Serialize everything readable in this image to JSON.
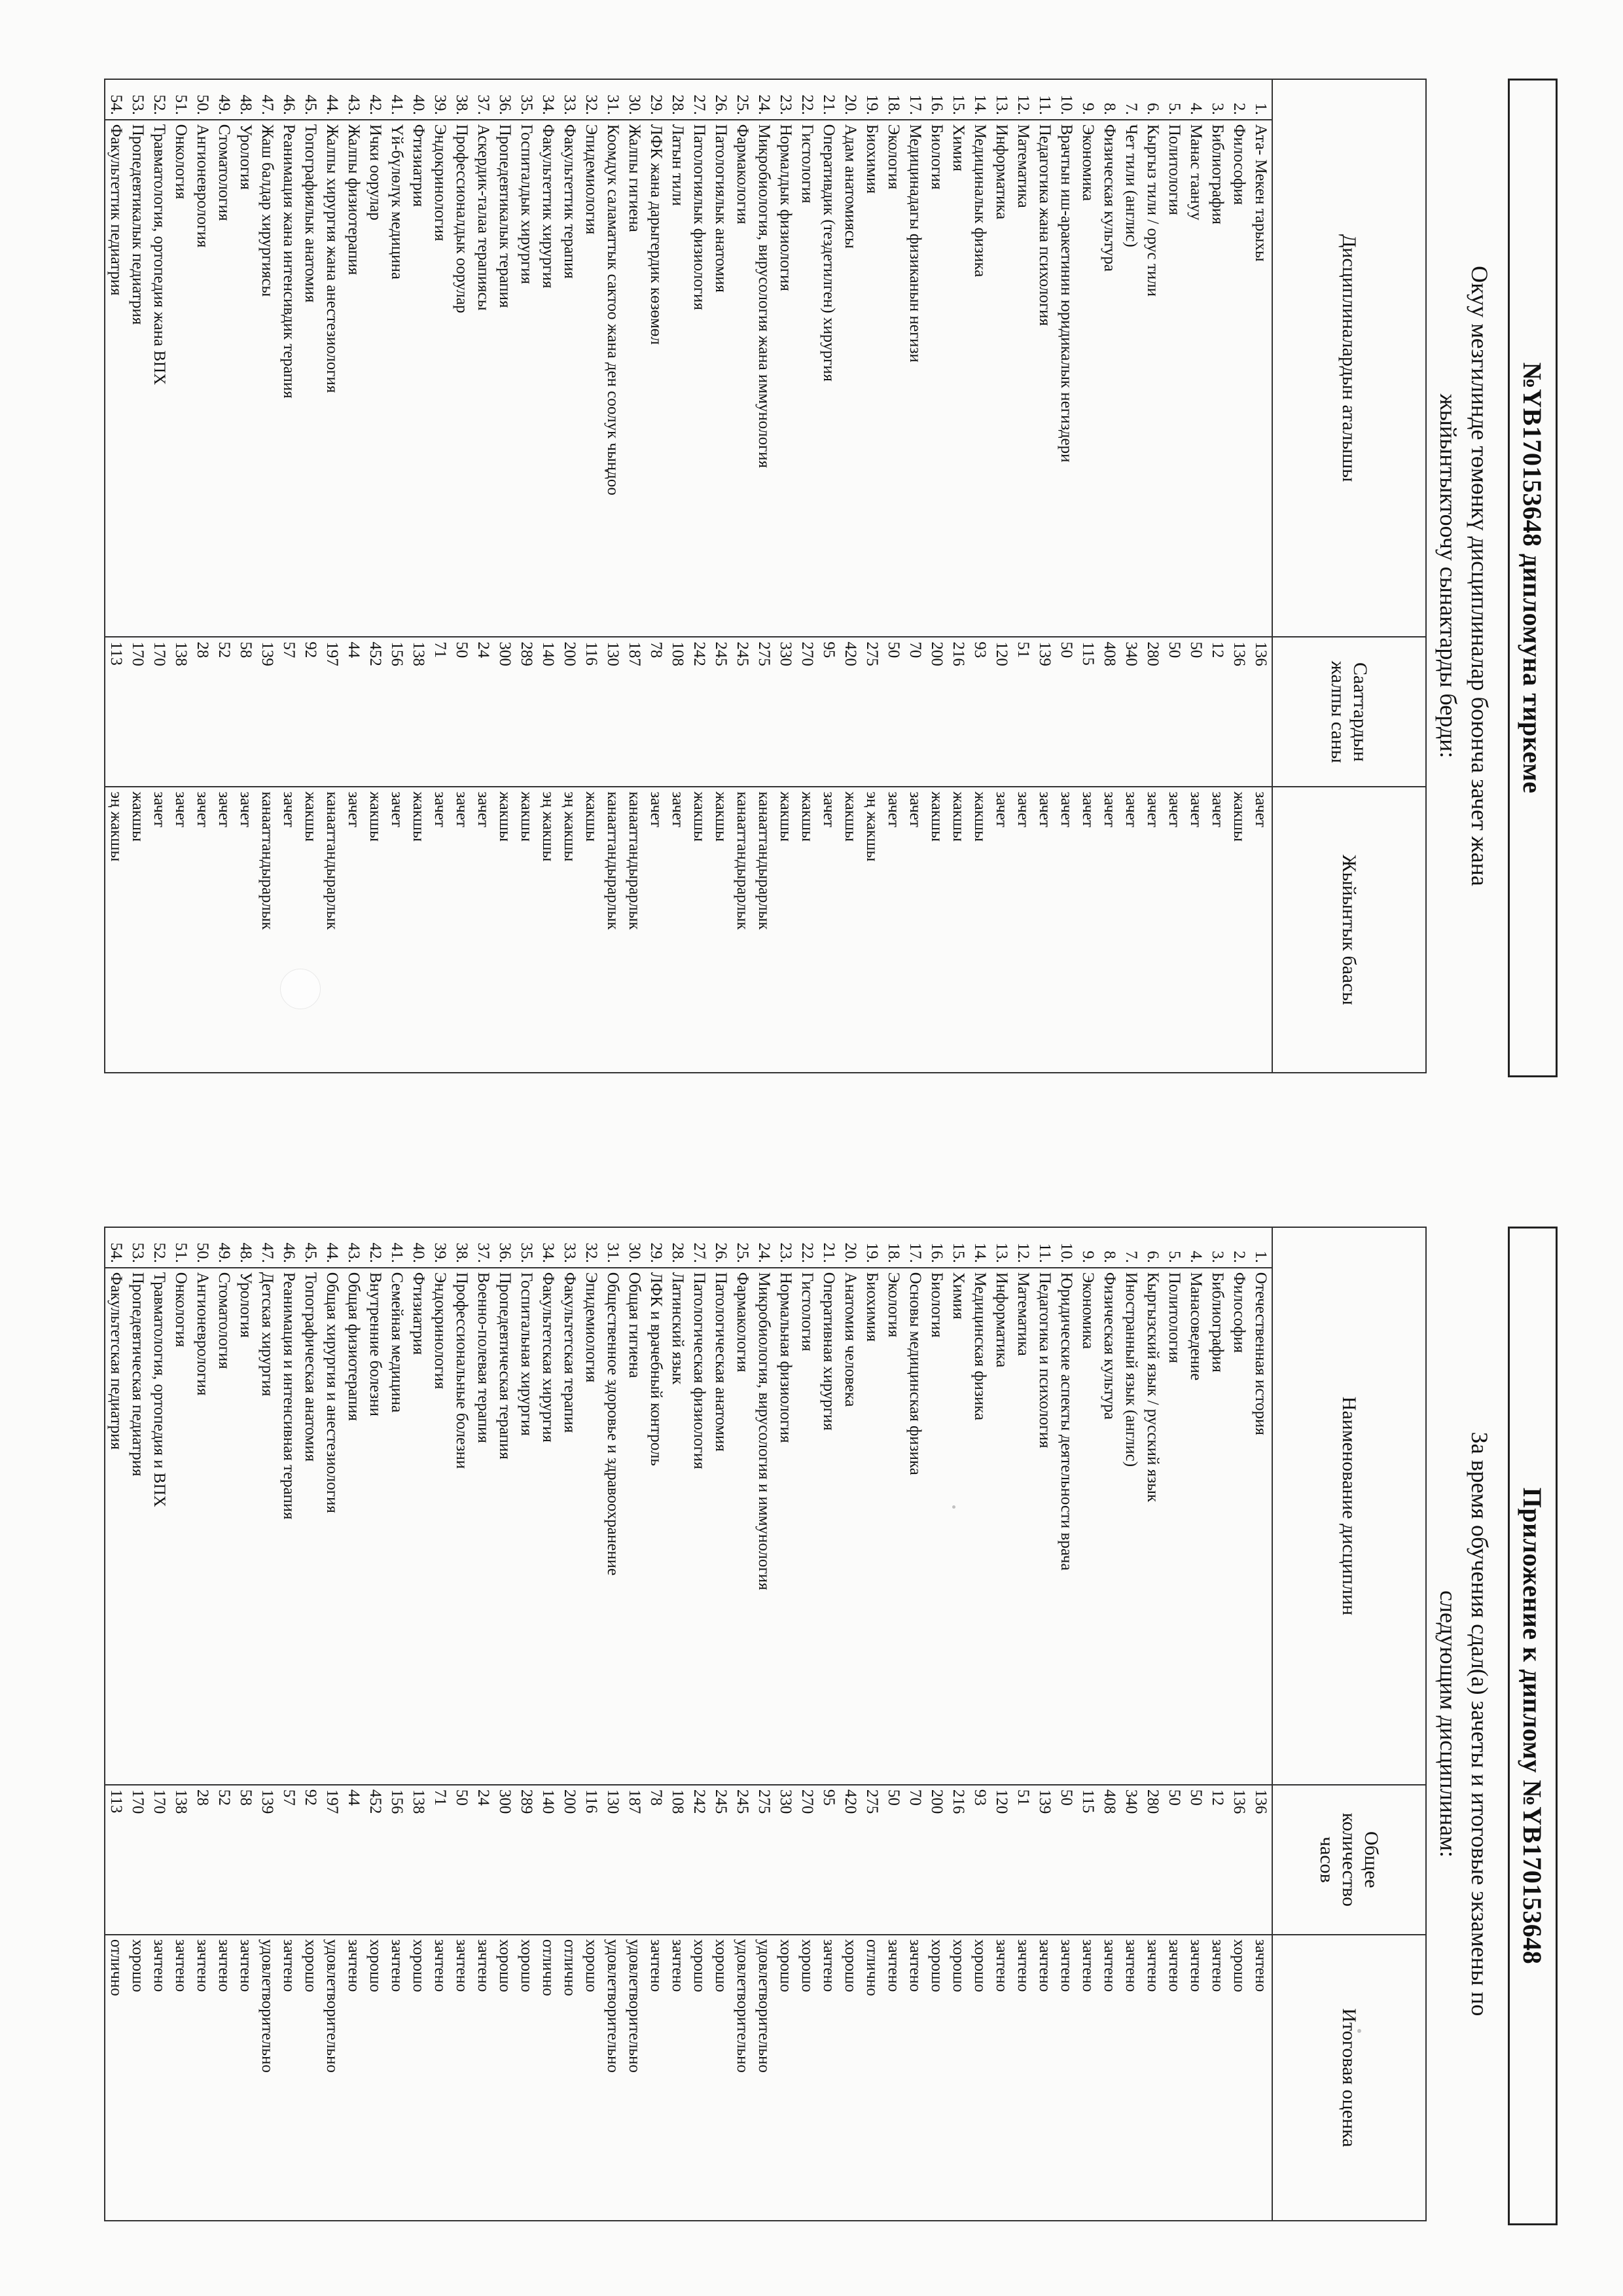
{
  "left": {
    "title": "№YB170153648 дипломуна тиркеме",
    "intro": [
      "Окуу мезгилинде төмөнкү дисциплиналар боюнча зачет жана",
      "жыйынтыктоочу сынактарды берди:"
    ],
    "headers": [
      "Дисциплиналардын аталышы",
      "Сааттардын жалпы саны",
      "Жыйынтык баасы"
    ],
    "rows": [
      [
        "1.",
        "Ата- Мекен тарыхы",
        "136",
        "зачет"
      ],
      [
        "2.",
        "Философия",
        "136",
        "жакшы"
      ],
      [
        "3.",
        "Библиография",
        "12",
        "зачет"
      ],
      [
        "4.",
        "Манас таануу",
        "50",
        "зачет"
      ],
      [
        "5.",
        "Политология",
        "50",
        "зачет"
      ],
      [
        "6.",
        "Кыргыз тили / орус тили",
        "280",
        "зачет"
      ],
      [
        "7.",
        "Чет тили (англис)",
        "340",
        "зачет"
      ],
      [
        "8.",
        "Физическая культура",
        "408",
        "зачет"
      ],
      [
        "9.",
        "Экономика",
        "115",
        "зачет"
      ],
      [
        "10.",
        "Врачтын иш-аракетинин юридикалык негиздери",
        "50",
        "зачет"
      ],
      [
        "11.",
        "Педагогика жана психология",
        "139",
        "зачет"
      ],
      [
        "12.",
        "Математика",
        "51",
        "зачет"
      ],
      [
        "13.",
        "Информатика",
        "120",
        "зачет"
      ],
      [
        "14.",
        "Медициналык физика",
        "93",
        "жакшы"
      ],
      [
        "15.",
        "Химия",
        "216",
        "жакшы"
      ],
      [
        "16.",
        "Биология",
        "200",
        "жакшы"
      ],
      [
        "17.",
        "Медицинадагы физиканын негизи",
        "70",
        "зачет"
      ],
      [
        "18.",
        "Экология",
        "50",
        "зачет"
      ],
      [
        "19.",
        "Биохимия",
        "275",
        "эң жакшы"
      ],
      [
        "20.",
        "Адам анатомиясы",
        "420",
        "жакшы"
      ],
      [
        "21.",
        "Оперативдик (тездетилген) хирургия",
        "95",
        "зачет"
      ],
      [
        "22.",
        "Гистология",
        "270",
        "жакшы"
      ],
      [
        "23.",
        "Нормалдык физиология",
        "330",
        "жакшы"
      ],
      [
        "24.",
        "Микробиология, вирусология жана иммунология",
        "275",
        "канааттандырарлык"
      ],
      [
        "25.",
        "Фармакология",
        "245",
        "канааттандырарлык"
      ],
      [
        "26.",
        "Патологиялык анатомия",
        "245",
        "жакшы"
      ],
      [
        "27.",
        "Патологиялык физиология",
        "242",
        "жакшы"
      ],
      [
        "28.",
        "Латын тили",
        "108",
        "зачет"
      ],
      [
        "29.",
        "ЛФК жана дарыгердик көзөмөл",
        "78",
        "зачет"
      ],
      [
        "30.",
        "Жалпы гигиена",
        "187",
        "канааттандырарлык"
      ],
      [
        "31.",
        "Коомдук саламаттык сактоо жана ден соолук чыңдоо",
        "130",
        "канааттандырарлык"
      ],
      [
        "32.",
        "Эпидемиология",
        "116",
        "жакшы"
      ],
      [
        "33.",
        "Факультеттик терапия",
        "200",
        "эң жакшы"
      ],
      [
        "34.",
        "Факультеттик хирургия",
        "140",
        "эң жакшы"
      ],
      [
        "35.",
        "Госпиталдык хирургия",
        "289",
        "жакшы"
      ],
      [
        "36.",
        "Пропедевтикалык терапия",
        "300",
        "жакшы"
      ],
      [
        "37.",
        "Аскердик-талаа терапиясы",
        "24",
        "зачет"
      ],
      [
        "38.",
        "Профессионалдык оорулар",
        "50",
        "зачет"
      ],
      [
        "39.",
        "Эндокринология",
        "71",
        "зачет"
      ],
      [
        "40.",
        "Фтизиатрия",
        "138",
        "жакшы"
      ],
      [
        "41.",
        "Үй-бүлөлүк медицина",
        "156",
        "зачет"
      ],
      [
        "42.",
        "Ички оорулар",
        "452",
        "жакшы"
      ],
      [
        "43.",
        "Жалпы физиотерапия",
        "44",
        "зачет"
      ],
      [
        "44.",
        "Жалпы хирургия жана анестезиология",
        "197",
        "канааттандырарлык"
      ],
      [
        "45.",
        "Топографиялык анатомия",
        "92",
        "жакшы"
      ],
      [
        "46.",
        "Реанимация жана интенсивдик терапия",
        "57",
        "зачет"
      ],
      [
        "47.",
        "Жаш балдар хирургиясы",
        "139",
        "канааттандырарлык"
      ],
      [
        "48.",
        "Урология",
        "58",
        "зачет"
      ],
      [
        "49.",
        "Стоматология",
        "52",
        "зачет"
      ],
      [
        "50.",
        "Ангионеврология",
        "28",
        "зачет"
      ],
      [
        "51.",
        "Онкология",
        "138",
        "зачет"
      ],
      [
        "52.",
        "Травматология, ортопедия жана ВПХ",
        "170",
        "зачет"
      ],
      [
        "53.",
        "Пропедевтикалык педиатрия",
        "170",
        "жакшы"
      ],
      [
        "54.",
        "Факультеттик педиатрия",
        "113",
        "эң жакшы"
      ]
    ]
  },
  "right": {
    "title": "Приложение к диплому №YB170153648",
    "intro": [
      "За время обучения сдал(а) зачеты и итоговые экзамены по",
      "следующим дисциплинам:"
    ],
    "headers": [
      "Наименование дисциплин",
      "Общее количество часов",
      "Итоговая оценка"
    ],
    "rows": [
      [
        "1.",
        "Отечественная история",
        "136",
        "зачтено"
      ],
      [
        "2.",
        "Философия",
        "136",
        "хорошо"
      ],
      [
        "3.",
        "Библиография",
        "12",
        "зачтено"
      ],
      [
        "4.",
        "Манасоведение",
        "50",
        "зачтено"
      ],
      [
        "5.",
        "Политология",
        "50",
        "зачтено"
      ],
      [
        "6.",
        "Кыргызский язык / русский язык",
        "280",
        "зачтено"
      ],
      [
        "7.",
        "Иностранный язык (англис)",
        "340",
        "зачтено"
      ],
      [
        "8.",
        "Физическая культура",
        "408",
        "зачтено"
      ],
      [
        "9.",
        "Экономика",
        "115",
        "зачтено"
      ],
      [
        "10.",
        "Юридические аспекты деятельности врача",
        "50",
        "зачтено"
      ],
      [
        "11.",
        "Педагогика и психология",
        "139",
        "зачтено"
      ],
      [
        "12.",
        "Математика",
        "51",
        "зачтено"
      ],
      [
        "13.",
        "Информатика",
        "120",
        "зачтено"
      ],
      [
        "14.",
        "Медицинская физика",
        "93",
        "хорошо"
      ],
      [
        "15.",
        "Химия",
        "216",
        "хорошо"
      ],
      [
        "16.",
        "Биология",
        "200",
        "хорошо"
      ],
      [
        "17.",
        "Основы медицинская физика",
        "70",
        "зачтено"
      ],
      [
        "18.",
        "Экология",
        "50",
        "зачтено"
      ],
      [
        "19.",
        "Биохимия",
        "275",
        "отлично"
      ],
      [
        "20.",
        "Анатомия человека",
        "420",
        "хорошо"
      ],
      [
        "21.",
        "Оперативная хирургия",
        "95",
        "зачтено"
      ],
      [
        "22.",
        "Гистология",
        "270",
        "хорошо"
      ],
      [
        "23.",
        "Нормальная физиология",
        "330",
        "хорошо"
      ],
      [
        "24.",
        "Микробиология, вирусология и иммунология",
        "275",
        "удовлетворительно"
      ],
      [
        "25.",
        "Фармакология",
        "245",
        "удовлетворительно"
      ],
      [
        "26.",
        "Патологическая анатомия",
        "245",
        "хорошо"
      ],
      [
        "27.",
        "Патологическая физиология",
        "242",
        "хорошо"
      ],
      [
        "28.",
        "Латинский язык",
        "108",
        "зачтено"
      ],
      [
        "29.",
        "ЛФК и врачебный контроль",
        "78",
        "зачтено"
      ],
      [
        "30.",
        "Общая гигиена",
        "187",
        "удовлетворительно"
      ],
      [
        "31.",
        "Общественное здоровье и здравоохранение",
        "130",
        "удовлетворительно"
      ],
      [
        "32.",
        "Эпидемиология",
        "116",
        "хорошо"
      ],
      [
        "33.",
        "Факультетская терапия",
        "200",
        "отлично"
      ],
      [
        "34.",
        "Факультетская хирургия",
        "140",
        "отлично"
      ],
      [
        "35.",
        "Госпитальная хирургия",
        "289",
        "хорошо"
      ],
      [
        "36.",
        "Пропедевтическая терапия",
        "300",
        "хорошо"
      ],
      [
        "37.",
        "Военно-полевая терапия",
        "24",
        "зачтено"
      ],
      [
        "38.",
        "Профессиональные болезни",
        "50",
        "зачтено"
      ],
      [
        "39.",
        "Эндокринология",
        "71",
        "зачтено"
      ],
      [
        "40.",
        "Фтизиатрия",
        "138",
        "хорошо"
      ],
      [
        "41.",
        "Семейная медицина",
        "156",
        "зачтено"
      ],
      [
        "42.",
        "Внутренние болезни",
        "452",
        "хорошо"
      ],
      [
        "43.",
        "Общая физиотерапия",
        "44",
        "зачтено"
      ],
      [
        "44.",
        "Общая хирургия и анестезиология",
        "197",
        "удовлетворительно"
      ],
      [
        "45.",
        "Топографическая анатомия",
        "92",
        "хорошо"
      ],
      [
        "46.",
        "Реанимация и интенсивная терапия",
        "57",
        "зачтено"
      ],
      [
        "47.",
        "Детская хирургия",
        "139",
        "удовлетворительно"
      ],
      [
        "48.",
        "Урология",
        "58",
        "зачтено"
      ],
      [
        "49.",
        "Стоматология",
        "52",
        "зачтено"
      ],
      [
        "50.",
        "Ангионеврология",
        "28",
        "зачтено"
      ],
      [
        "51.",
        "Онкология",
        "138",
        "зачтено"
      ],
      [
        "52.",
        "Травматология, ортопедия и ВПХ",
        "170",
        "зачтено"
      ],
      [
        "53.",
        "Пропедевтическая педиатрия",
        "170",
        "хорошо"
      ],
      [
        "54.",
        "Факультетская педиатрия",
        "113",
        "отлично"
      ]
    ]
  }
}
